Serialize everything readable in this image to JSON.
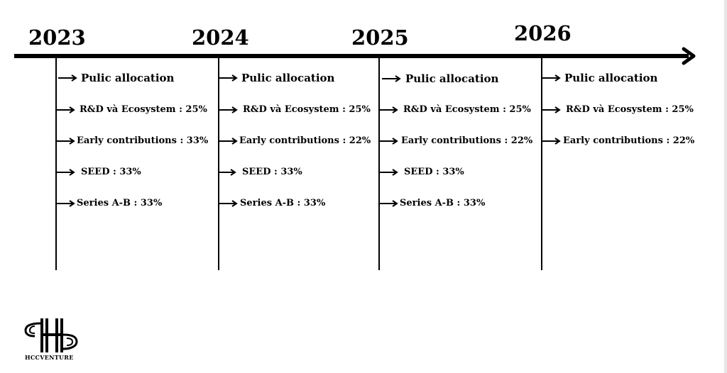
{
  "years": [
    "2023",
    "2024",
    "2025",
    "2026"
  ],
  "columns": [
    {
      "heading": "Pulic allocation",
      "items": [
        "R&D và Ecosystem : 25%",
        "Early contributions : 33%",
        "SEED : 33%",
        "Series A-B : 33%"
      ]
    },
    {
      "heading": "Pulic allocation",
      "items": [
        "R&D và Ecosystem : 25%",
        "Early contributions : 22%",
        "SEED : 33%",
        "Series A-B : 33%"
      ]
    },
    {
      "heading": "Pulic allocation",
      "items": [
        "R&D và Ecosystem : 25%",
        "Early contributions : 22%",
        "SEED : 33%",
        "Series A-B : 33%"
      ]
    },
    {
      "heading": "Pulic allocation",
      "items": [
        "R&D và Ecosystem : 25%",
        "Early contributions : 22%"
      ]
    }
  ],
  "logo": {
    "text": "HCCVENTURE"
  }
}
